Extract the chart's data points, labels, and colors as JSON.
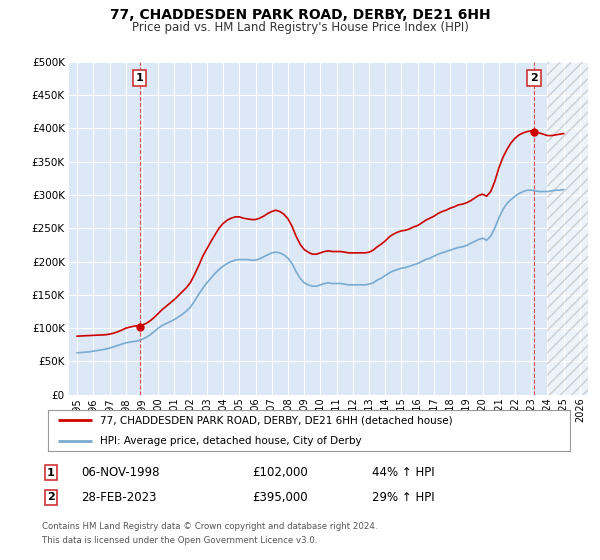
{
  "title": "77, CHADDESDEN PARK ROAD, DERBY, DE21 6HH",
  "subtitle": "Price paid vs. HM Land Registry's House Price Index (HPI)",
  "bg_color": "#f0f0f0",
  "plot_bg_color": "#dce8f5",
  "grid_color": "#b0c4d8",
  "red_line_color": "#cc0000",
  "blue_line_color": "#7aaad0",
  "marker_color": "#cc0000",
  "annotation_box_color": "#cc3333",
  "ylim": [
    0,
    500000
  ],
  "yticks": [
    0,
    50000,
    100000,
    150000,
    200000,
    250000,
    300000,
    350000,
    400000,
    450000,
    500000
  ],
  "ytick_labels": [
    "£0",
    "£50K",
    "£100K",
    "£150K",
    "£200K",
    "£250K",
    "£300K",
    "£350K",
    "£400K",
    "£450K",
    "£500K"
  ],
  "xlim_start": 1994.5,
  "xlim_end": 2026.5,
  "xticks": [
    1995,
    1996,
    1997,
    1998,
    1999,
    2000,
    2001,
    2002,
    2003,
    2004,
    2005,
    2006,
    2007,
    2008,
    2009,
    2010,
    2011,
    2012,
    2013,
    2014,
    2015,
    2016,
    2017,
    2018,
    2019,
    2020,
    2021,
    2022,
    2023,
    2024,
    2025,
    2026
  ],
  "transaction1_x": 1998.847,
  "transaction1_y": 102000,
  "transaction1_label": "1",
  "transaction1_date": "06-NOV-1998",
  "transaction1_price": "£102,000",
  "transaction1_hpi": "44% ↑ HPI",
  "transaction2_x": 2023.163,
  "transaction2_y": 395000,
  "transaction2_label": "2",
  "transaction2_date": "28-FEB-2023",
  "transaction2_price": "£395,000",
  "transaction2_hpi": "29% ↑ HPI",
  "hatch_start": 2024.0,
  "legend_line1": "77, CHADDESDEN PARK ROAD, DERBY, DE21 6HH (detached house)",
  "legend_line2": "HPI: Average price, detached house, City of Derby",
  "footer1": "Contains HM Land Registry data © Crown copyright and database right 2024.",
  "footer2": "This data is licensed under the Open Government Licence v3.0.",
  "hpi_data_x": [
    1995.0,
    1995.25,
    1995.5,
    1995.75,
    1996.0,
    1996.25,
    1996.5,
    1996.75,
    1997.0,
    1997.25,
    1997.5,
    1997.75,
    1998.0,
    1998.25,
    1998.5,
    1998.75,
    1999.0,
    1999.25,
    1999.5,
    1999.75,
    2000.0,
    2000.25,
    2000.5,
    2000.75,
    2001.0,
    2001.25,
    2001.5,
    2001.75,
    2002.0,
    2002.25,
    2002.5,
    2002.75,
    2003.0,
    2003.25,
    2003.5,
    2003.75,
    2004.0,
    2004.25,
    2004.5,
    2004.75,
    2005.0,
    2005.25,
    2005.5,
    2005.75,
    2006.0,
    2006.25,
    2006.5,
    2006.75,
    2007.0,
    2007.25,
    2007.5,
    2007.75,
    2008.0,
    2008.25,
    2008.5,
    2008.75,
    2009.0,
    2009.25,
    2009.5,
    2009.75,
    2010.0,
    2010.25,
    2010.5,
    2010.75,
    2011.0,
    2011.25,
    2011.5,
    2011.75,
    2012.0,
    2012.25,
    2012.5,
    2012.75,
    2013.0,
    2013.25,
    2013.5,
    2013.75,
    2014.0,
    2014.25,
    2014.5,
    2014.75,
    2015.0,
    2015.25,
    2015.5,
    2015.75,
    2016.0,
    2016.25,
    2016.5,
    2016.75,
    2017.0,
    2017.25,
    2017.5,
    2017.75,
    2018.0,
    2018.25,
    2018.5,
    2018.75,
    2019.0,
    2019.25,
    2019.5,
    2019.75,
    2020.0,
    2020.25,
    2020.5,
    2020.75,
    2021.0,
    2021.25,
    2021.5,
    2021.75,
    2022.0,
    2022.25,
    2022.5,
    2022.75,
    2023.0,
    2023.25,
    2023.5,
    2023.75,
    2024.0,
    2024.25,
    2024.5,
    2024.75,
    2025.0
  ],
  "hpi_data_y": [
    63000,
    63500,
    64000,
    64500,
    65500,
    66500,
    67500,
    68500,
    70000,
    72000,
    74000,
    76000,
    78000,
    79000,
    80000,
    81000,
    83000,
    86000,
    90000,
    95000,
    100000,
    104000,
    107000,
    110000,
    113000,
    117000,
    121000,
    126000,
    132000,
    141000,
    151000,
    160000,
    168000,
    175000,
    182000,
    188000,
    193000,
    197000,
    200000,
    202000,
    203000,
    203000,
    203000,
    202000,
    202000,
    204000,
    207000,
    210000,
    213000,
    214000,
    213000,
    210000,
    205000,
    197000,
    185000,
    175000,
    168000,
    165000,
    163000,
    163000,
    165000,
    167000,
    168000,
    167000,
    167000,
    167000,
    166000,
    165000,
    165000,
    165000,
    165000,
    165000,
    166000,
    168000,
    172000,
    175000,
    179000,
    183000,
    186000,
    188000,
    190000,
    191000,
    193000,
    195000,
    197000,
    200000,
    203000,
    205000,
    208000,
    211000,
    213000,
    215000,
    217000,
    219000,
    221000,
    222000,
    224000,
    227000,
    230000,
    233000,
    235000,
    232000,
    238000,
    250000,
    265000,
    278000,
    287000,
    293000,
    298000,
    302000,
    305000,
    307000,
    307000,
    306000,
    305000,
    305000,
    305000,
    306000,
    307000,
    307000,
    308000
  ],
  "property_data_x": [
    1995.0,
    1995.25,
    1995.5,
    1995.75,
    1996.0,
    1996.25,
    1996.5,
    1996.75,
    1997.0,
    1997.25,
    1997.5,
    1997.75,
    1998.0,
    1998.25,
    1998.5,
    1998.75,
    1999.0,
    1999.25,
    1999.5,
    1999.75,
    2000.0,
    2000.25,
    2000.5,
    2000.75,
    2001.0,
    2001.25,
    2001.5,
    2001.75,
    2002.0,
    2002.25,
    2002.5,
    2002.75,
    2003.0,
    2003.25,
    2003.5,
    2003.75,
    2004.0,
    2004.25,
    2004.5,
    2004.75,
    2005.0,
    2005.25,
    2005.5,
    2005.75,
    2006.0,
    2006.25,
    2006.5,
    2006.75,
    2007.0,
    2007.25,
    2007.5,
    2007.75,
    2008.0,
    2008.25,
    2008.5,
    2008.75,
    2009.0,
    2009.25,
    2009.5,
    2009.75,
    2010.0,
    2010.25,
    2010.5,
    2010.75,
    2011.0,
    2011.25,
    2011.5,
    2011.75,
    2012.0,
    2012.25,
    2012.5,
    2012.75,
    2013.0,
    2013.25,
    2013.5,
    2013.75,
    2014.0,
    2014.25,
    2014.5,
    2014.75,
    2015.0,
    2015.25,
    2015.5,
    2015.75,
    2016.0,
    2016.25,
    2016.5,
    2016.75,
    2017.0,
    2017.25,
    2017.5,
    2017.75,
    2018.0,
    2018.25,
    2018.5,
    2018.75,
    2019.0,
    2019.25,
    2019.5,
    2019.75,
    2020.0,
    2020.25,
    2020.5,
    2020.75,
    2021.0,
    2021.25,
    2021.5,
    2021.75,
    2022.0,
    2022.25,
    2022.5,
    2022.75,
    2023.0,
    2023.25,
    2023.5,
    2023.75,
    2024.0,
    2024.25,
    2024.5,
    2024.75,
    2025.0
  ],
  "property_data_y": [
    88000,
    88300,
    88600,
    88900,
    89200,
    89500,
    89800,
    90100,
    91000,
    92500,
    94500,
    97000,
    100000,
    101500,
    103000,
    103500,
    104500,
    107000,
    111000,
    116000,
    122000,
    128000,
    133000,
    138000,
    143000,
    149000,
    155000,
    161000,
    169000,
    181000,
    194000,
    208000,
    219000,
    230000,
    240000,
    250000,
    257000,
    262000,
    265000,
    267000,
    267000,
    265000,
    264000,
    263000,
    263000,
    265000,
    268000,
    272000,
    275000,
    277000,
    275000,
    271000,
    264000,
    253000,
    238000,
    226000,
    218000,
    214000,
    211000,
    211000,
    213000,
    215000,
    216000,
    215000,
    215000,
    215000,
    214000,
    213000,
    213000,
    213000,
    213000,
    213000,
    214000,
    217000,
    222000,
    226000,
    231000,
    237000,
    241000,
    244000,
    246000,
    247000,
    249000,
    252000,
    254000,
    258000,
    262000,
    265000,
    268000,
    272000,
    275000,
    277000,
    280000,
    282000,
    285000,
    286000,
    288000,
    291000,
    295000,
    299000,
    301000,
    298000,
    305000,
    320000,
    340000,
    356000,
    368000,
    378000,
    385000,
    390000,
    393000,
    395000,
    396000,
    395000,
    393000,
    391000,
    389000,
    389000,
    390000,
    391000,
    392000
  ]
}
